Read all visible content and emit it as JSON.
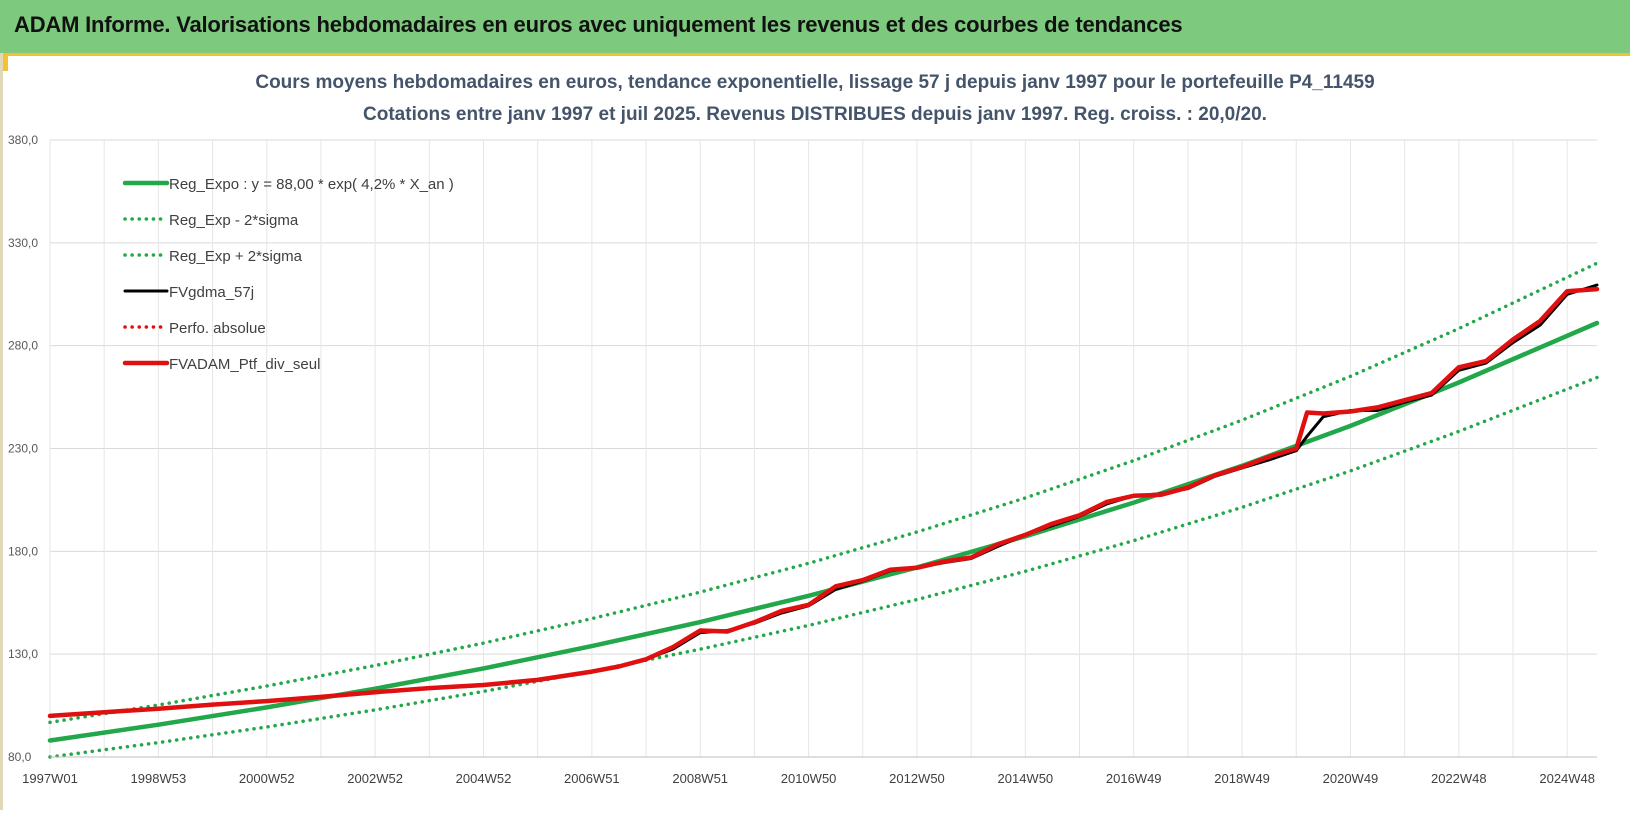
{
  "header": {
    "title": "ADAM Informe. Valorisations hebdomadaires en euros avec uniquement les revenus et des courbes de tendances"
  },
  "chart_data": {
    "type": "line",
    "title": "Cours moyens hebdomadaires  en euros, tendance exponentielle, lissage 57 j depuis janv 1997 pour le portefeuille P4_11459",
    "subtitle": "Cotations entre janv 1997 et juil 2025. Revenus DISTRIBUES depuis janv 1997. Reg. croiss. : 20,0/20.",
    "xlabel": "",
    "ylabel": "",
    "xlim": [
      1997.0,
      2025.55
    ],
    "ylim": [
      80,
      380
    ],
    "grid": true,
    "legend_position": "top-left",
    "y_ticks": [
      {
        "value": 80,
        "label": "80,0"
      },
      {
        "value": 130,
        "label": "130,0"
      },
      {
        "value": 180,
        "label": "180,0"
      },
      {
        "value": 230,
        "label": "230,0"
      },
      {
        "value": 280,
        "label": "280,0"
      },
      {
        "value": 330,
        "label": "330,0"
      },
      {
        "value": 380,
        "label": "380,0"
      }
    ],
    "x_ticks": [
      {
        "value": 1997.0,
        "label": "1997W01"
      },
      {
        "value": 1999.0,
        "label": "1998W53"
      },
      {
        "value": 2001.0,
        "label": "2000W52"
      },
      {
        "value": 2003.0,
        "label": "2002W52"
      },
      {
        "value": 2005.0,
        "label": "2004W52"
      },
      {
        "value": 2007.0,
        "label": "2006W51"
      },
      {
        "value": 2009.0,
        "label": "2008W51"
      },
      {
        "value": 2011.0,
        "label": "2010W50"
      },
      {
        "value": 2013.0,
        "label": "2012W50"
      },
      {
        "value": 2015.0,
        "label": "2014W50"
      },
      {
        "value": 2017.0,
        "label": "2016W49"
      },
      {
        "value": 2019.0,
        "label": "2018W49"
      },
      {
        "value": 2021.0,
        "label": "2020W49"
      },
      {
        "value": 2023.0,
        "label": "2022W48"
      },
      {
        "value": 2025.0,
        "label": "2024W48"
      }
    ],
    "series": [
      {
        "name": "Reg_Expo : y = 88,00 * exp( 4,2% *  X_an )",
        "color": "#22a84a",
        "style": "solid",
        "x": [
          1997.0,
          1999.0,
          2001.0,
          2003.0,
          2005.0,
          2007.0,
          2009.0,
          2011.0,
          2013.0,
          2015.0,
          2017.0,
          2019.0,
          2021.0,
          2023.0,
          2025.55
        ],
        "y": [
          88.0,
          95.7,
          104.1,
          113.2,
          123.1,
          133.9,
          145.6,
          158.4,
          172.2,
          187.3,
          203.7,
          221.6,
          241.0,
          262.1,
          291.0
        ]
      },
      {
        "name": "Reg_Exp - 2*sigma",
        "color": "#22a84a",
        "style": "dotted",
        "x": [
          1997.0,
          1999.0,
          2001.0,
          2003.0,
          2005.0,
          2007.0,
          2009.0,
          2011.0,
          2013.0,
          2015.0,
          2017.0,
          2019.0,
          2021.0,
          2023.0,
          2025.55
        ],
        "y": [
          80.0,
          87.0,
          94.6,
          102.9,
          111.9,
          121.7,
          132.4,
          144.0,
          156.6,
          170.3,
          185.2,
          201.4,
          219.1,
          238.3,
          264.5
        ]
      },
      {
        "name": "Reg_Exp + 2*sigma",
        "color": "#22a84a",
        "style": "dotted",
        "x": [
          1997.0,
          1999.0,
          2001.0,
          2003.0,
          2005.0,
          2007.0,
          2009.0,
          2011.0,
          2013.0,
          2015.0,
          2017.0,
          2019.0,
          2021.0,
          2023.0,
          2025.55
        ],
        "y": [
          96.8,
          105.3,
          114.5,
          124.5,
          135.4,
          147.3,
          160.2,
          174.2,
          189.4,
          206.0,
          224.1,
          243.8,
          265.1,
          288.3,
          320.1
        ]
      },
      {
        "name": "FVgdma_57j",
        "color": "#000000",
        "style": "solid",
        "x": [
          1997.0,
          1998.0,
          1999.0,
          2000.0,
          2001.0,
          2002.0,
          2003.0,
          2004.0,
          2005.0,
          2006.0,
          2007.0,
          2007.5,
          2008.0,
          2008.5,
          2009.0,
          2009.5,
          2010.0,
          2010.5,
          2011.0,
          2011.5,
          2012.0,
          2012.5,
          2013.0,
          2013.5,
          2014.0,
          2014.5,
          2015.0,
          2015.5,
          2016.0,
          2016.5,
          2017.0,
          2017.5,
          2018.0,
          2018.5,
          2019.0,
          2019.5,
          2020.0,
          2020.2,
          2020.5,
          2021.0,
          2021.5,
          2022.0,
          2022.5,
          2023.0,
          2023.5,
          2024.0,
          2024.5,
          2025.0,
          2025.55
        ],
        "y": [
          100.0,
          101.8,
          103.5,
          105.5,
          107.2,
          109.2,
          111.5,
          113.5,
          115.0,
          117.5,
          121.5,
          124.0,
          127.5,
          132.5,
          140.5,
          141.5,
          145.0,
          150.0,
          153.5,
          161.5,
          165.5,
          170.5,
          172.0,
          174.5,
          176.5,
          182.5,
          188.0,
          192.5,
          197.0,
          203.0,
          207.0,
          208.0,
          210.5,
          216.5,
          220.5,
          224.5,
          229.0,
          236.0,
          245.5,
          248.5,
          248.5,
          252.5,
          256.0,
          268.0,
          271.5,
          281.5,
          290.0,
          305.0,
          309.5
        ]
      },
      {
        "name": "Perfo. absolue",
        "color": "#e01010",
        "style": "dotted",
        "x": [
          1997.0,
          1998.0,
          1999.0,
          2000.0,
          2001.0,
          2002.0,
          2003.0,
          2004.0,
          2005.0,
          2006.0,
          2007.0,
          2007.5,
          2008.0,
          2008.5,
          2009.0,
          2009.5,
          2010.0,
          2010.5,
          2011.0,
          2011.5,
          2012.0,
          2012.5,
          2013.0,
          2013.5,
          2014.0,
          2014.5,
          2015.0,
          2015.5,
          2016.0,
          2016.5,
          2017.0,
          2017.5,
          2018.0,
          2018.5,
          2019.0,
          2019.5,
          2020.0,
          2020.2,
          2020.5,
          2021.0,
          2021.5,
          2022.0,
          2022.5,
          2023.0,
          2023.5,
          2024.0,
          2024.5,
          2025.0,
          2025.55
        ],
        "y": [
          100.0,
          101.8,
          103.5,
          105.5,
          107.2,
          109.2,
          111.5,
          113.5,
          115.0,
          117.5,
          121.5,
          124.0,
          127.5,
          133.5,
          141.5,
          141.0,
          145.5,
          151.0,
          154.0,
          163.0,
          166.0,
          171.0,
          172.0,
          175.0,
          177.0,
          183.5,
          188.0,
          193.5,
          197.5,
          204.0,
          207.0,
          207.5,
          211.0,
          217.0,
          221.0,
          226.0,
          230.0,
          247.5,
          247.0,
          248.0,
          250.0,
          253.5,
          257.0,
          269.5,
          272.5,
          283.0,
          292.0,
          306.5,
          307.5
        ]
      },
      {
        "name": "FVADAM_Ptf_div_seul",
        "color": "#e01010",
        "style": "solid",
        "x": [
          1997.0,
          1998.0,
          1999.0,
          2000.0,
          2001.0,
          2002.0,
          2003.0,
          2004.0,
          2005.0,
          2006.0,
          2007.0,
          2007.5,
          2008.0,
          2008.5,
          2009.0,
          2009.5,
          2010.0,
          2010.5,
          2011.0,
          2011.5,
          2012.0,
          2012.5,
          2013.0,
          2013.5,
          2014.0,
          2014.5,
          2015.0,
          2015.5,
          2016.0,
          2016.5,
          2017.0,
          2017.5,
          2018.0,
          2018.5,
          2019.0,
          2019.5,
          2020.0,
          2020.2,
          2020.5,
          2021.0,
          2021.5,
          2022.0,
          2022.5,
          2023.0,
          2023.5,
          2024.0,
          2024.5,
          2025.0,
          2025.55
        ],
        "y": [
          100.0,
          101.8,
          103.5,
          105.5,
          107.2,
          109.2,
          111.5,
          113.5,
          115.0,
          117.5,
          121.5,
          124.0,
          127.5,
          133.5,
          141.5,
          141.0,
          145.5,
          151.0,
          154.0,
          163.0,
          166.0,
          171.0,
          172.0,
          175.0,
          177.0,
          183.5,
          188.0,
          193.5,
          197.5,
          204.0,
          207.0,
          207.5,
          211.0,
          217.0,
          221.0,
          226.0,
          230.0,
          247.5,
          247.0,
          248.0,
          250.0,
          253.5,
          257.0,
          269.5,
          272.5,
          283.0,
          292.0,
          306.5,
          307.5
        ]
      }
    ]
  }
}
